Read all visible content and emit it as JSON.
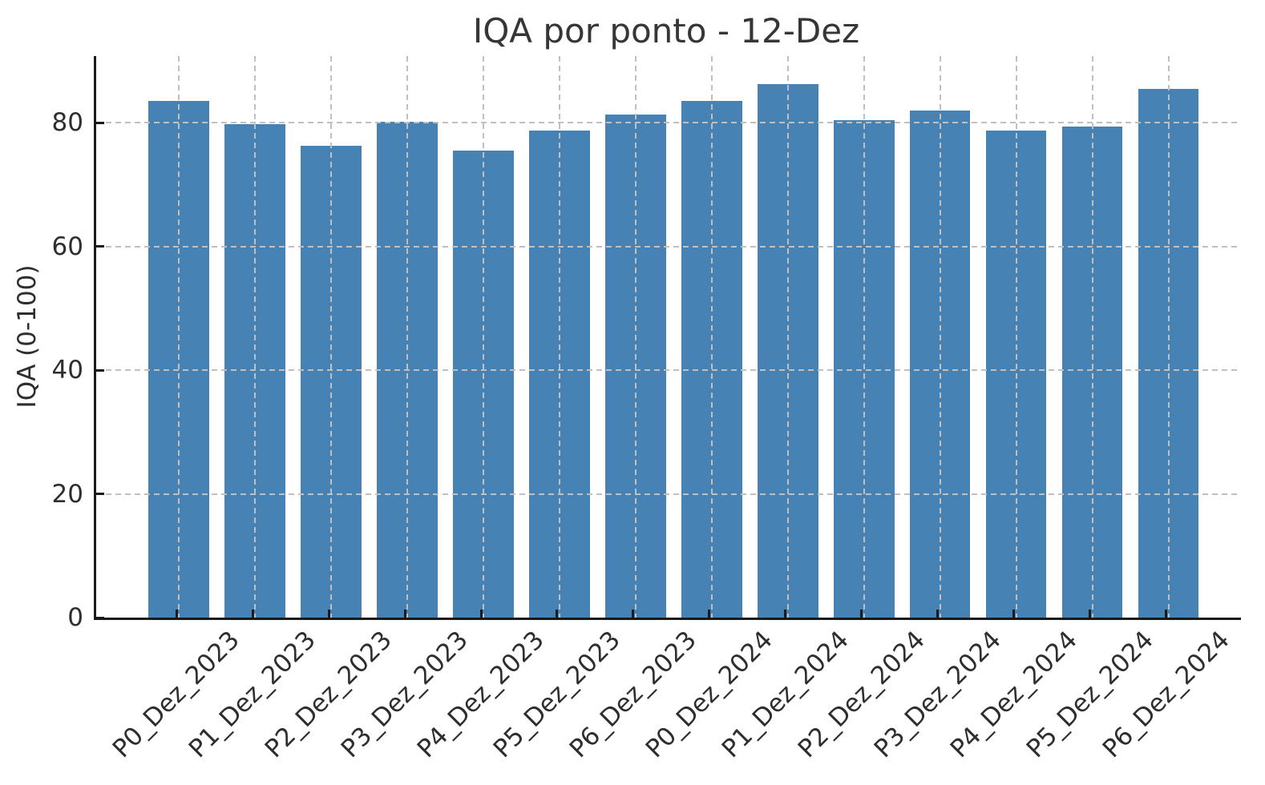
{
  "chart_data": {
    "type": "bar",
    "title": "IQA por ponto - 12-Dez",
    "ylabel": "IQA (0-100)",
    "xlabel": "",
    "categories": [
      "P0_Dez_2023",
      "P1_Dez_2023",
      "P2_Dez_2023",
      "P3_Dez_2023",
      "P4_Dez_2023",
      "P5_Dez_2023",
      "P6_Dez_2023",
      "P0_Dez_2024",
      "P1_Dez_2024",
      "P2_Dez_2024",
      "P3_Dez_2024",
      "P4_Dez_2024",
      "P5_Dez_2024",
      "P6_Dez_2024"
    ],
    "values": [
      83.5,
      79.8,
      76.3,
      80.2,
      75.5,
      78.7,
      81.4,
      83.5,
      86.3,
      80.5,
      82.0,
      78.7,
      79.4,
      85.5
    ],
    "yticks": [
      0,
      20,
      40,
      60,
      80
    ],
    "ylim": [
      0,
      90.8
    ],
    "xtick_label_rotation_deg": 45,
    "grid": {
      "visible": true,
      "style": "dashed",
      "color": "#c0c0c0",
      "drawn_above_bars": true
    },
    "bar_color": "#4682B4",
    "axis_color": "#1a1a1a",
    "text_color": "#2e2e2e",
    "background_color": "#ffffff",
    "legend": {
      "visible": false
    }
  }
}
